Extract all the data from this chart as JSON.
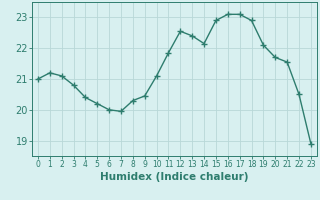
{
  "x": [
    0,
    1,
    2,
    3,
    4,
    5,
    6,
    7,
    8,
    9,
    10,
    11,
    12,
    13,
    14,
    15,
    16,
    17,
    18,
    19,
    20,
    21,
    22,
    23
  ],
  "y": [
    21.0,
    21.2,
    21.1,
    20.8,
    20.4,
    20.2,
    20.0,
    19.95,
    20.3,
    20.45,
    21.1,
    21.85,
    22.55,
    22.4,
    22.15,
    22.9,
    23.1,
    23.1,
    22.9,
    22.1,
    21.7,
    21.55,
    20.5,
    18.9
  ],
  "line_color": "#2e7d6e",
  "marker": "+",
  "marker_size": 4,
  "marker_lw": 1.0,
  "line_width": 1.0,
  "xlabel": "Humidex (Indice chaleur)",
  "bg_color": "#d8f0f0",
  "grid_color": "#b8d8d8",
  "ylim": [
    18.5,
    23.5
  ],
  "xlim": [
    -0.5,
    23.5
  ],
  "yticks": [
    19,
    20,
    21,
    22,
    23
  ],
  "xticks": [
    0,
    1,
    2,
    3,
    4,
    5,
    6,
    7,
    8,
    9,
    10,
    11,
    12,
    13,
    14,
    15,
    16,
    17,
    18,
    19,
    20,
    21,
    22,
    23
  ],
  "tick_color": "#2e7d6e",
  "label_color": "#2e7d6e",
  "xlabel_fontsize": 7.5,
  "xlabel_bold": true,
  "ytick_fontsize": 7,
  "xtick_fontsize": 5.5
}
